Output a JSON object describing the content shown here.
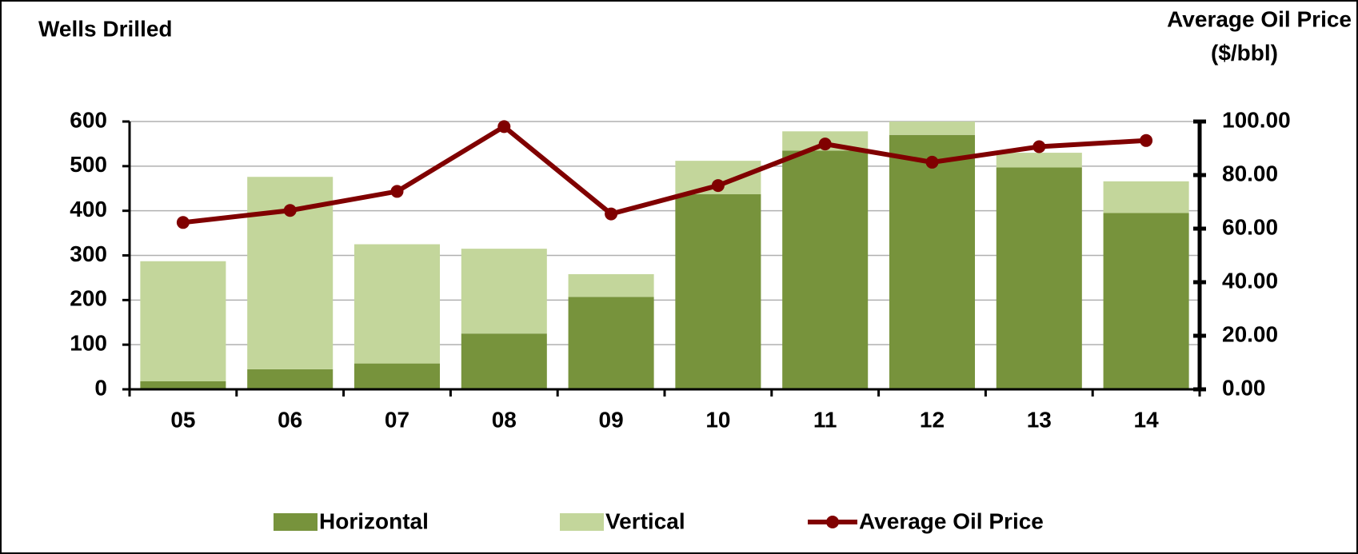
{
  "chart_data": {
    "type": "bar_line",
    "y_label": "Wells Drilled",
    "y2_label": [
      "Average Oil Price",
      "($/bbl)"
    ],
    "categories": [
      "05",
      "06",
      "07",
      "08",
      "09",
      "10",
      "11",
      "12",
      "13",
      "14"
    ],
    "series": [
      {
        "name": "Horizontal",
        "type": "bar",
        "color": "#77933c",
        "values": [
          18,
          45,
          58,
          125,
          207,
          437,
          535,
          570,
          497,
          395
        ]
      },
      {
        "name": "Vertical",
        "type": "bar",
        "color": "#c3d69b",
        "values": [
          269,
          431,
          267,
          190,
          51,
          75,
          43,
          30,
          33,
          71
        ]
      },
      {
        "name": "Average Oil Price",
        "type": "line",
        "axis": "y2",
        "color": "#800000",
        "values": [
          62.3,
          66.8,
          73.9,
          98.1,
          65.5,
          76.1,
          91.6,
          84.8,
          90.6,
          92.9
        ]
      }
    ],
    "stacked": true,
    "ylim": [
      0,
      600
    ],
    "yticks": [
      0,
      100,
      200,
      300,
      400,
      500,
      600
    ],
    "y2lim": [
      0,
      100
    ],
    "y2ticks": [
      {
        "value": 0,
        "label": "0.00"
      },
      {
        "value": 20,
        "label": "20.00"
      },
      {
        "value": 40,
        "label": "40.00"
      },
      {
        "value": 60,
        "label": "60.00"
      },
      {
        "value": 80,
        "label": "80.00"
      },
      {
        "value": 100,
        "label": "100.00"
      }
    ],
    "grid": true,
    "legend": "bottom"
  }
}
